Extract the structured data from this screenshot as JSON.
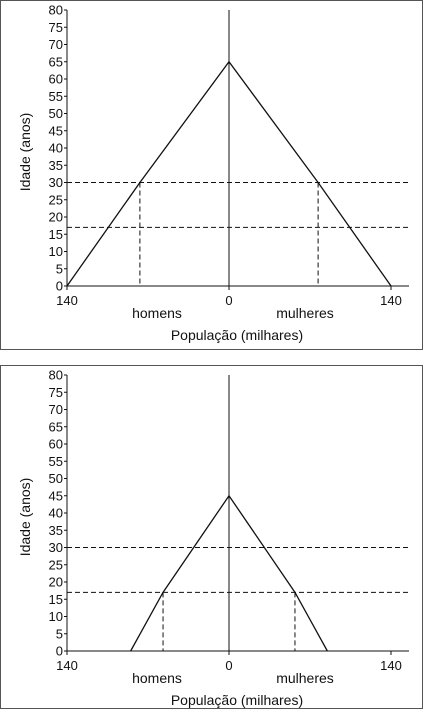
{
  "chart_data": [
    {
      "type": "line",
      "ylabel": "Idade (anos)",
      "xlabel": "População (milhares)",
      "left_label": "homens",
      "right_label": "mulheres",
      "xticks": [
        "140",
        "0",
        "140"
      ],
      "ylim": [
        0,
        80
      ],
      "yticks": [
        0,
        5,
        10,
        15,
        20,
        25,
        30,
        35,
        40,
        45,
        50,
        55,
        60,
        65,
        70,
        75,
        80
      ],
      "reference_ages": [
        30,
        17
      ],
      "series": [
        {
          "values": [
            {
              "x": -140,
              "y": 0
            },
            {
              "x": -77,
              "y": 30
            },
            {
              "x": 0,
              "y": 65
            },
            {
              "x": 77,
              "y": 30
            },
            {
              "x": 140,
              "y": 0
            }
          ]
        }
      ]
    },
    {
      "type": "line",
      "ylabel": "Idade (anos)",
      "xlabel": "População (milhares)",
      "left_label": "homens",
      "right_label": "mulheres",
      "xticks": [
        "140",
        "0",
        "140"
      ],
      "ylim": [
        0,
        80
      ],
      "yticks": [
        0,
        5,
        10,
        15,
        20,
        25,
        30,
        35,
        40,
        45,
        50,
        55,
        60,
        65,
        70,
        75,
        80
      ],
      "reference_ages": [
        30,
        17
      ],
      "series": [
        {
          "values": [
            {
              "x": -85,
              "y": 0
            },
            {
              "x": -57,
              "y": 17
            },
            {
              "x": 0,
              "y": 45
            },
            {
              "x": 57,
              "y": 17
            },
            {
              "x": 85,
              "y": 0
            }
          ]
        }
      ]
    }
  ]
}
